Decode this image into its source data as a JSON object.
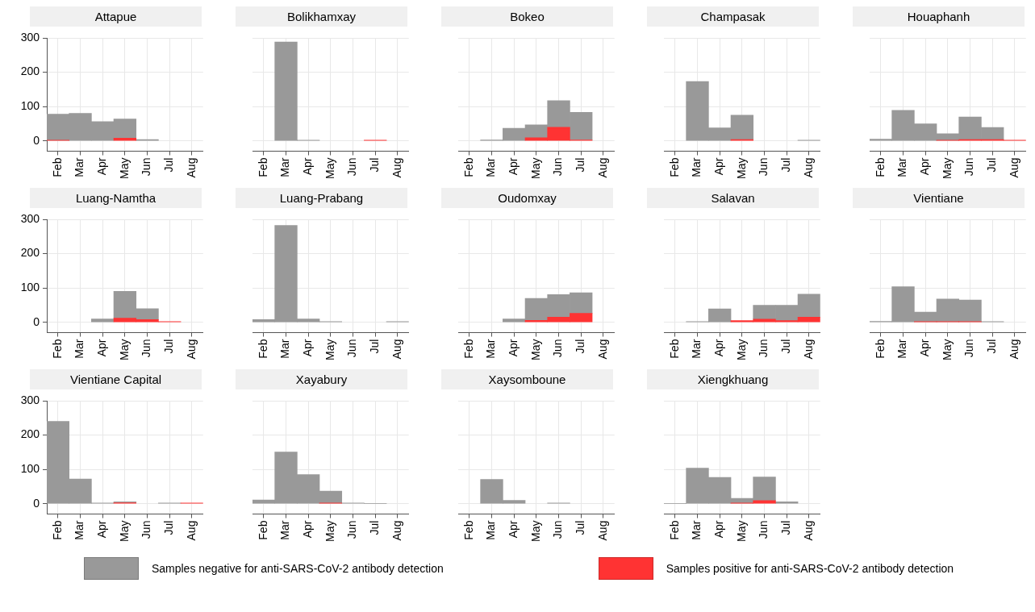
{
  "chart_data": [
    {
      "type": "bar",
      "title": "Attapue",
      "categories": [
        "Feb",
        "Mar",
        "Apr",
        "May",
        "Jun",
        "Jul",
        "Aug"
      ],
      "stacked": true,
      "ylim": [
        -30,
        300
      ],
      "yticks": [
        0,
        100,
        200,
        300
      ],
      "grid": true,
      "legend": "bottom",
      "series": [
        {
          "name": "Samples positive for anti-SARS-CoV-2 antibody detection",
          "color": "#ff3333",
          "values": [
            2,
            null,
            null,
            8,
            null,
            null,
            null
          ]
        },
        {
          "name": "Samples negative for anti-SARS-CoV-2 antibody detection",
          "color": "#999999",
          "values": [
            76,
            80,
            56,
            56,
            4,
            null,
            null
          ]
        }
      ]
    },
    {
      "type": "bar",
      "title": "Bolikhamxay",
      "categories": [
        "Feb",
        "Mar",
        "Apr",
        "May",
        "Jun",
        "Jul",
        "Aug"
      ],
      "stacked": true,
      "ylim": [
        -30,
        300
      ],
      "yticks": [
        0,
        100,
        200,
        300
      ],
      "grid": true,
      "tick_labels": "x",
      "series": [
        {
          "color": "#ff3333",
          "values": [
            null,
            null,
            null,
            null,
            null,
            2,
            null
          ]
        },
        {
          "color": "#999999",
          "values": [
            null,
            288,
            2,
            null,
            null,
            null,
            null
          ]
        }
      ]
    },
    {
      "type": "bar",
      "title": "Bokeo",
      "categories": [
        "Feb",
        "Mar",
        "Apr",
        "May",
        "Jun",
        "Jul",
        "Aug"
      ],
      "stacked": true,
      "ylim": [
        -30,
        300
      ],
      "yticks": [
        0,
        100,
        200,
        300
      ],
      "grid": true,
      "tick_labels": "x",
      "series": [
        {
          "color": "#ff3333",
          "values": [
            null,
            null,
            null,
            9,
            40,
            3,
            null
          ]
        },
        {
          "color": "#999999",
          "values": [
            null,
            3,
            37,
            38,
            77,
            80,
            null
          ]
        }
      ]
    },
    {
      "type": "bar",
      "title": "Champasak",
      "categories": [
        "Feb",
        "Mar",
        "Apr",
        "May",
        "Jun",
        "Jul",
        "Aug"
      ],
      "stacked": true,
      "ylim": [
        -30,
        300
      ],
      "yticks": [
        0,
        100,
        200,
        300
      ],
      "grid": true,
      "tick_labels": "x",
      "series": [
        {
          "color": "#ff3333",
          "values": [
            null,
            null,
            null,
            4,
            null,
            null,
            null
          ]
        },
        {
          "color": "#999999",
          "values": [
            null,
            173,
            38,
            71,
            null,
            null,
            2
          ]
        }
      ]
    },
    {
      "type": "bar",
      "title": "Houaphanh",
      "categories": [
        "Feb",
        "Mar",
        "Apr",
        "May",
        "Jun",
        "Jul",
        "Aug"
      ],
      "stacked": true,
      "ylim": [
        -30,
        300
      ],
      "yticks": [
        0,
        100,
        200,
        300
      ],
      "grid": true,
      "tick_labels": "x",
      "series": [
        {
          "color": "#ff3333",
          "values": [
            null,
            null,
            null,
            2,
            4,
            4,
            2
          ]
        },
        {
          "color": "#999999",
          "values": [
            5,
            89,
            50,
            19,
            66,
            35,
            null
          ]
        }
      ]
    },
    {
      "type": "bar",
      "title": "Luang-Namtha",
      "categories": [
        "Feb",
        "Mar",
        "Apr",
        "May",
        "Jun",
        "Jul",
        "Aug"
      ],
      "stacked": true,
      "ylim": [
        -30,
        300
      ],
      "yticks": [
        0,
        100,
        200,
        300
      ],
      "grid": true,
      "series": [
        {
          "color": "#ff3333",
          "values": [
            null,
            null,
            null,
            12,
            8,
            2,
            null
          ]
        },
        {
          "color": "#999999",
          "values": [
            null,
            null,
            10,
            78,
            32,
            null,
            null
          ]
        }
      ]
    },
    {
      "type": "bar",
      "title": "Luang-Prabang",
      "categories": [
        "Feb",
        "Mar",
        "Apr",
        "May",
        "Jun",
        "Jul",
        "Aug"
      ],
      "stacked": true,
      "ylim": [
        -30,
        300
      ],
      "yticks": [
        0,
        100,
        200,
        300
      ],
      "grid": true,
      "tick_labels": "x",
      "series": [
        {
          "color": "#ff3333",
          "values": [
            null,
            null,
            null,
            null,
            null,
            null,
            null
          ]
        },
        {
          "color": "#999999",
          "values": [
            8,
            282,
            10,
            2,
            null,
            null,
            2
          ]
        }
      ]
    },
    {
      "type": "bar",
      "title": "Oudomxay",
      "categories": [
        "Feb",
        "Mar",
        "Apr",
        "May",
        "Jun",
        "Jul",
        "Aug"
      ],
      "stacked": true,
      "ylim": [
        -30,
        300
      ],
      "yticks": [
        0,
        100,
        200,
        300
      ],
      "grid": true,
      "tick_labels": "x",
      "series": [
        {
          "color": "#ff3333",
          "values": [
            null,
            null,
            null,
            6,
            15,
            26,
            null
          ]
        },
        {
          "color": "#999999",
          "values": [
            null,
            null,
            10,
            64,
            66,
            60,
            null
          ]
        }
      ]
    },
    {
      "type": "bar",
      "title": "Salavan",
      "categories": [
        "Feb",
        "Mar",
        "Apr",
        "May",
        "Jun",
        "Jul",
        "Aug"
      ],
      "stacked": true,
      "ylim": [
        -30,
        300
      ],
      "yticks": [
        0,
        100,
        200,
        300
      ],
      "grid": true,
      "tick_labels": "x",
      "series": [
        {
          "color": "#ff3333",
          "values": [
            null,
            null,
            null,
            5,
            9,
            5,
            15
          ]
        },
        {
          "color": "#999999",
          "values": [
            null,
            2,
            39,
            null,
            41,
            45,
            67
          ]
        }
      ]
    },
    {
      "type": "bar",
      "title": "Vientiane",
      "categories": [
        "Feb",
        "Mar",
        "Apr",
        "May",
        "Jun",
        "Jul",
        "Aug"
      ],
      "stacked": true,
      "ylim": [
        -30,
        300
      ],
      "yticks": [
        0,
        100,
        200,
        300
      ],
      "grid": true,
      "tick_labels": "x",
      "series": [
        {
          "color": "#ff3333",
          "values": [
            null,
            null,
            2,
            2,
            2,
            null,
            null
          ]
        },
        {
          "color": "#999999",
          "values": [
            3,
            104,
            28,
            66,
            63,
            2,
            null
          ]
        }
      ]
    },
    {
      "type": "bar",
      "title": "Vientiane Capital",
      "categories": [
        "Feb",
        "Mar",
        "Apr",
        "May",
        "Jun",
        "Jul",
        "Aug"
      ],
      "stacked": true,
      "ylim": [
        -30,
        300
      ],
      "yticks": [
        0,
        100,
        200,
        300
      ],
      "grid": true,
      "series": [
        {
          "color": "#ff3333",
          "values": [
            null,
            null,
            null,
            3,
            null,
            null,
            2
          ]
        },
        {
          "color": "#999999",
          "values": [
            240,
            72,
            2,
            3,
            null,
            2,
            null
          ]
        }
      ]
    },
    {
      "type": "bar",
      "title": "Xayabury",
      "categories": [
        "Feb",
        "Mar",
        "Apr",
        "May",
        "Jun",
        "Jul",
        "Aug"
      ],
      "stacked": true,
      "ylim": [
        -30,
        300
      ],
      "yticks": [
        0,
        100,
        200,
        300
      ],
      "grid": true,
      "tick_labels": "x",
      "series": [
        {
          "color": "#ff3333",
          "values": [
            null,
            null,
            null,
            2,
            null,
            null,
            null
          ]
        },
        {
          "color": "#999999",
          "values": [
            11,
            151,
            85,
            35,
            2,
            1,
            null
          ]
        }
      ]
    },
    {
      "type": "bar",
      "title": "Xaysomboune",
      "categories": [
        "Feb",
        "Mar",
        "Apr",
        "May",
        "Jun",
        "Jul",
        "Aug"
      ],
      "stacked": true,
      "ylim": [
        -30,
        300
      ],
      "yticks": [
        0,
        100,
        200,
        300
      ],
      "grid": true,
      "tick_labels": "x",
      "series": [
        {
          "color": "#ff3333",
          "values": [
            null,
            null,
            null,
            null,
            null,
            null,
            null
          ]
        },
        {
          "color": "#999999",
          "values": [
            null,
            71,
            10,
            null,
            2,
            null,
            null
          ]
        }
      ]
    },
    {
      "type": "bar",
      "title": "Xiengkhuang",
      "categories": [
        "Feb",
        "Mar",
        "Apr",
        "May",
        "Jun",
        "Jul",
        "Aug"
      ],
      "stacked": true,
      "ylim": [
        -30,
        300
      ],
      "yticks": [
        0,
        100,
        200,
        300
      ],
      "grid": true,
      "tick_labels": "x",
      "series": [
        {
          "color": "#ff3333",
          "values": [
            null,
            null,
            null,
            2,
            9,
            null,
            null
          ]
        },
        {
          "color": "#999999",
          "values": [
            1,
            104,
            77,
            14,
            69,
            6,
            null
          ]
        }
      ]
    }
  ]
}
